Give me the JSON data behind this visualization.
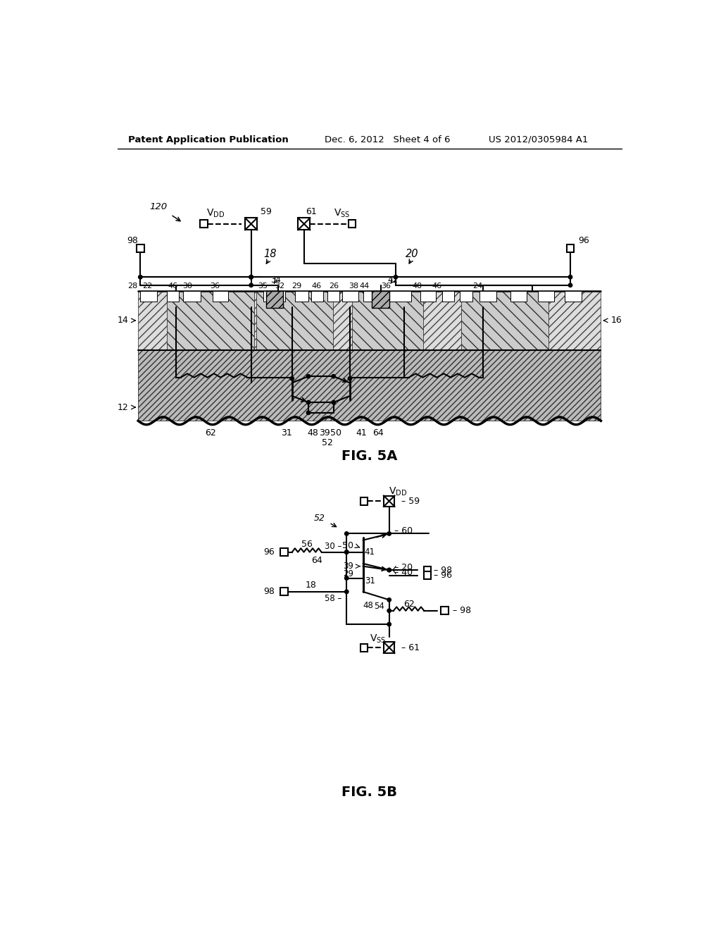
{
  "background_color": "#ffffff",
  "header_left": "Patent Application Publication",
  "header_center": "Dec. 6, 2012   Sheet 4 of 6",
  "header_right": "US 2012/0305984 A1",
  "fig5a_label": "FIG. 5A",
  "fig5b_label": "FIG. 5B",
  "text_color": "#000000",
  "line_color": "#000000"
}
